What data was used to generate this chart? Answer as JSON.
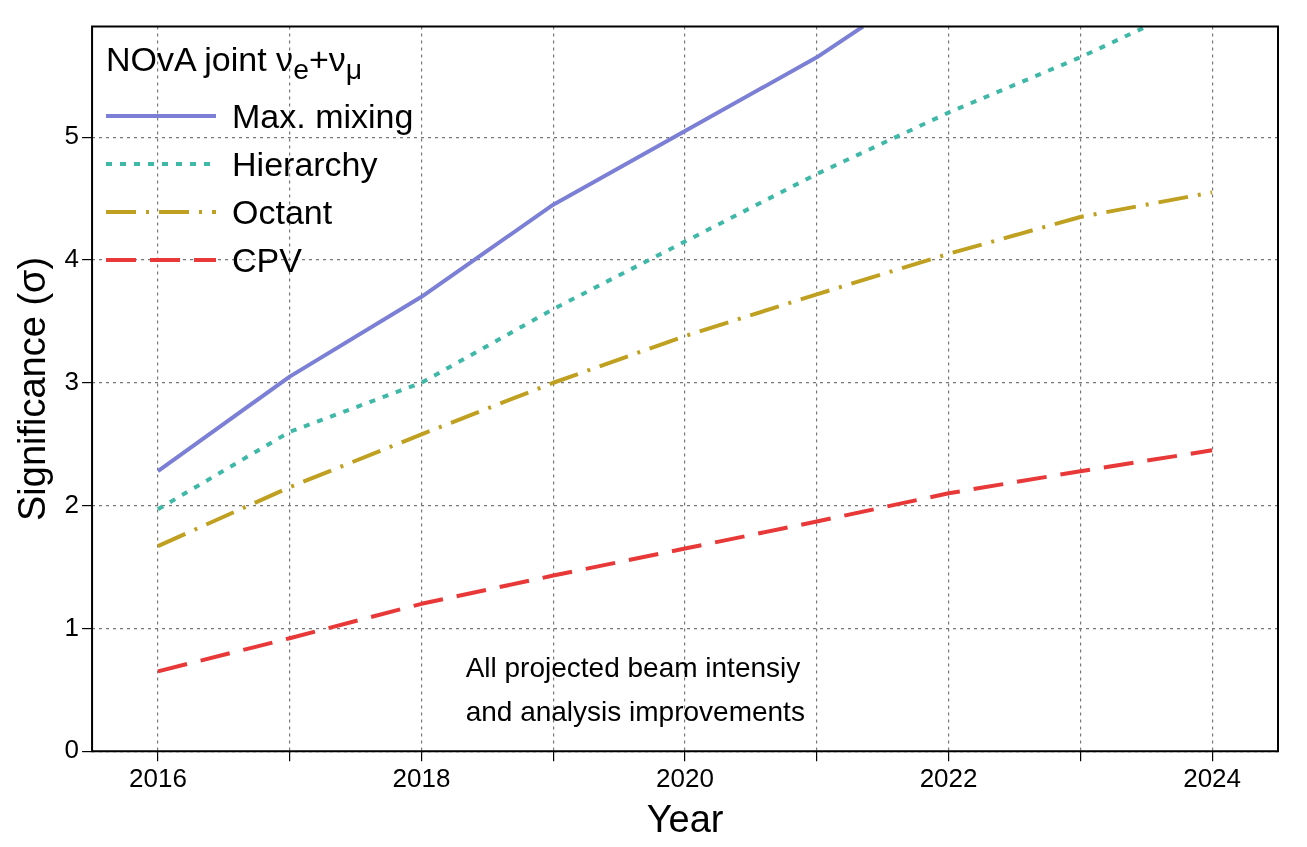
{
  "chart_data": {
    "type": "line",
    "xlabel": "Year",
    "ylabel": "Significance (σ)",
    "legend_title": "NOvA joint ν$_{e}$+ν$_{μ}$",
    "xlim": [
      2015.5,
      2024.5
    ],
    "xticks": [
      2016,
      {
        "value": 2017,
        "label": null
      },
      2018,
      {
        "value": 2019,
        "label": null
      },
      2020,
      {
        "value": 2021,
        "label": null
      },
      2022,
      {
        "value": 2023,
        "label": null
      },
      2024
    ],
    "ylim": [
      0,
      5.9
    ],
    "yticks": [
      0,
      1,
      2,
      3,
      4,
      5
    ],
    "grid": true,
    "legend": "top left",
    "marker": "none",
    "annotations": [
      "All projected beam intensiy\nand analysis improvements"
    ],
    "series": [
      {
        "name": "Max. mixing",
        "color": "#7b7fd6",
        "line_style": "solid",
        "x": [
          2016,
          2017,
          2018,
          2019,
          2020,
          2021,
          2021.35
        ],
        "values": [
          2.28,
          3.05,
          3.7,
          4.45,
          5.05,
          5.65,
          5.9
        ]
      },
      {
        "name": "Hierarchy",
        "color": "#3fb8a8",
        "line_style": "dotted",
        "x": [
          2016,
          2017,
          2018,
          2019,
          2020,
          2021,
          2022,
          2023,
          2023.5
        ],
        "values": [
          1.97,
          2.6,
          3.0,
          3.6,
          4.15,
          4.7,
          5.2,
          5.65,
          5.9
        ]
      },
      {
        "name": "Octant",
        "color": "#c0a020",
        "line_style": "dashdot",
        "x": [
          2016,
          2017,
          2018,
          2019,
          2020,
          2021,
          2022,
          2023,
          2024
        ],
        "values": [
          1.67,
          2.15,
          2.58,
          3.0,
          3.38,
          3.72,
          4.05,
          4.35,
          4.55
        ]
      },
      {
        "name": "CPV",
        "color": "#e83838",
        "line_style": "dashed",
        "x": [
          2016,
          2017,
          2018,
          2019,
          2020,
          2021,
          2022,
          2023,
          2024
        ],
        "values": [
          0.65,
          0.92,
          1.2,
          1.43,
          1.65,
          1.87,
          2.1,
          2.28,
          2.45
        ]
      }
    ]
  }
}
